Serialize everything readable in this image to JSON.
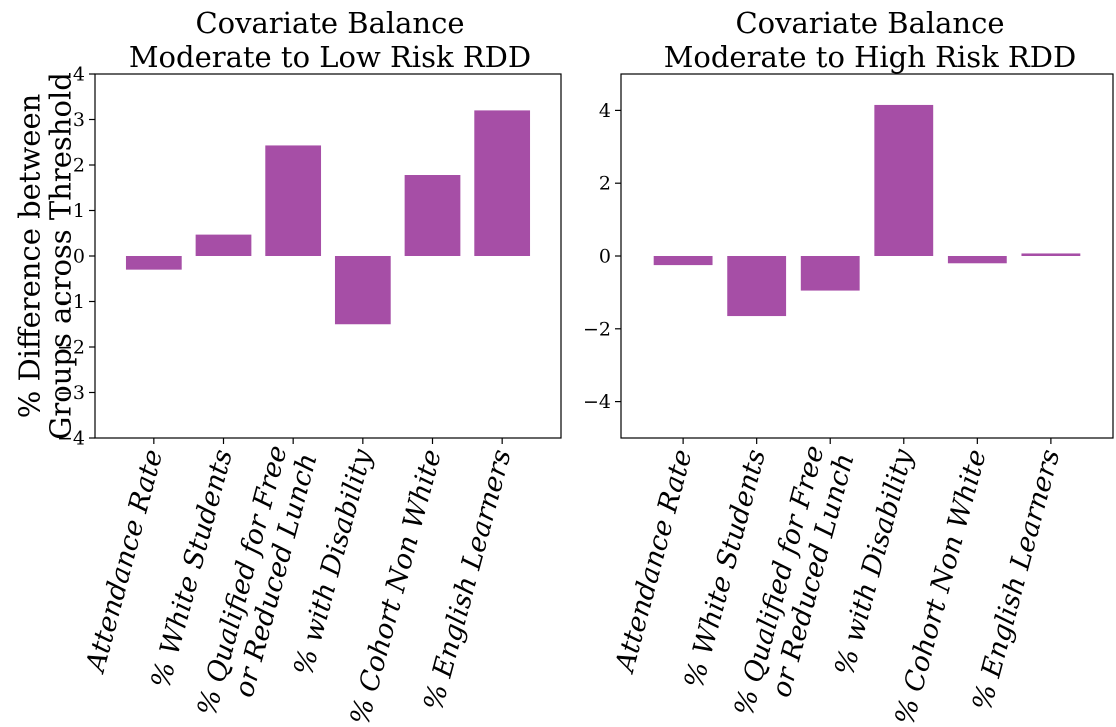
{
  "chart_data": [
    {
      "type": "bar",
      "title": [
        "Covariate Balance",
        "Moderate to Low Risk RDD"
      ],
      "ylabel": [
        "% Difference between",
        "Groups across Threshold"
      ],
      "xlabel": "",
      "categories": [
        [
          "Attendance Rate"
        ],
        [
          "% White Students"
        ],
        [
          "% Qualified for Free",
          "or Reduced Lunch"
        ],
        [
          "% with Disability"
        ],
        [
          "% Cohort Non White"
        ],
        [
          "% English Learners"
        ]
      ],
      "values": [
        -0.3,
        0.47,
        2.43,
        -1.5,
        1.78,
        3.2
      ],
      "ylim": [
        -4,
        4
      ],
      "yticks": [
        -4,
        -3,
        -2,
        -1,
        0,
        1,
        2,
        3,
        4
      ],
      "ytick_labels": [
        "−4",
        "−3",
        "−2",
        "−1",
        "0",
        "1",
        "2",
        "3",
        "4"
      ],
      "bar_color": "#a64ea6",
      "grid": false
    },
    {
      "type": "bar",
      "title": [
        "Covariate Balance",
        "Moderate to High Risk RDD"
      ],
      "ylabel": [],
      "xlabel": "",
      "categories": [
        [
          "Attendance Rate"
        ],
        [
          "% White Students"
        ],
        [
          "% Qualified for Free",
          "or Reduced Lunch"
        ],
        [
          "% with Disability"
        ],
        [
          "% Cohort Non White"
        ],
        [
          "% English Learners"
        ]
      ],
      "values": [
        -0.25,
        -1.65,
        -0.95,
        4.15,
        -0.2,
        0.07
      ],
      "ylim": [
        -5,
        5
      ],
      "yticks": [
        -4,
        -2,
        0,
        2,
        4
      ],
      "ytick_labels": [
        "−4",
        "−2",
        "0",
        "2",
        "4"
      ],
      "bar_color": "#a64ea6",
      "grid": false
    }
  ]
}
